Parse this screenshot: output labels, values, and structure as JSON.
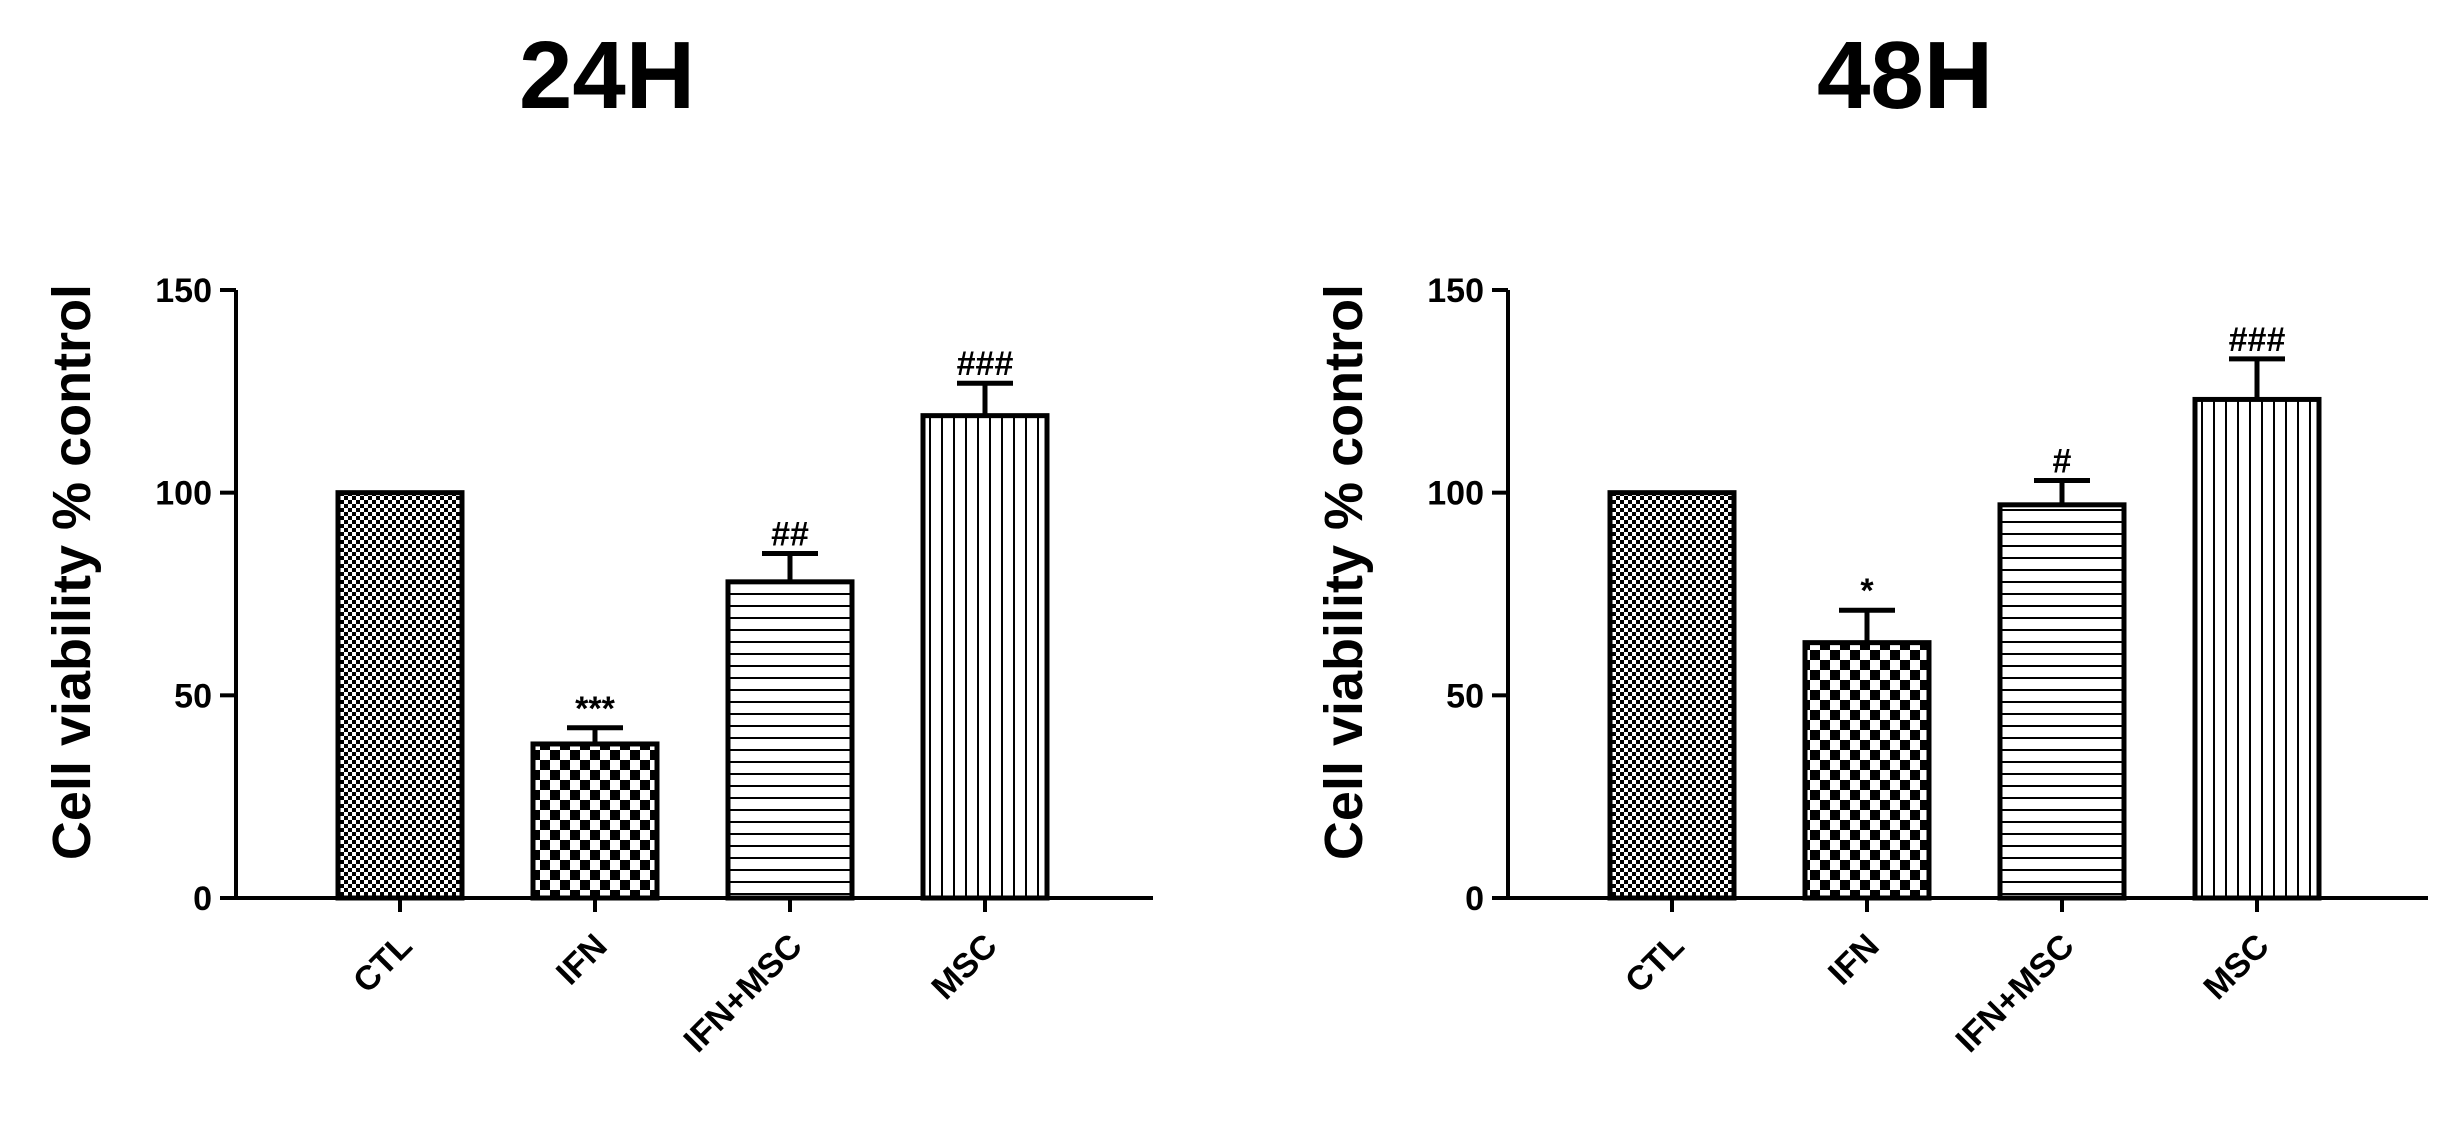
{
  "chart_data": [
    {
      "type": "bar",
      "title": "24H",
      "xlabel": "",
      "ylabel": "Cell viability % control",
      "ylim": [
        0,
        150
      ],
      "yticks": [
        0,
        50,
        100,
        150
      ],
      "categories": [
        "CTL",
        "IFN",
        "IFN+MSC",
        "MSC"
      ],
      "values": [
        100,
        38,
        78,
        119
      ],
      "errors": [
        0,
        4,
        7,
        8
      ],
      "annotations": [
        "",
        "***",
        "##",
        "###"
      ],
      "patterns": [
        "fine-check",
        "check",
        "horizontal",
        "vertical"
      ],
      "grid": false,
      "legend": "none"
    },
    {
      "type": "bar",
      "title": "48H",
      "xlabel": "",
      "ylabel": "Cell viability % control",
      "ylim": [
        0,
        150
      ],
      "yticks": [
        0,
        50,
        100,
        150
      ],
      "categories": [
        "CTL",
        "IFN",
        "IFN+MSC",
        "MSC"
      ],
      "values": [
        100,
        63,
        97,
        123
      ],
      "errors": [
        0,
        8,
        6,
        10
      ],
      "annotations": [
        "",
        "*",
        "#",
        "###"
      ],
      "patterns": [
        "fine-check",
        "check",
        "horizontal",
        "vertical"
      ],
      "grid": false,
      "legend": "none"
    }
  ],
  "colors": {
    "ink": "#000000",
    "background": "#ffffff"
  }
}
